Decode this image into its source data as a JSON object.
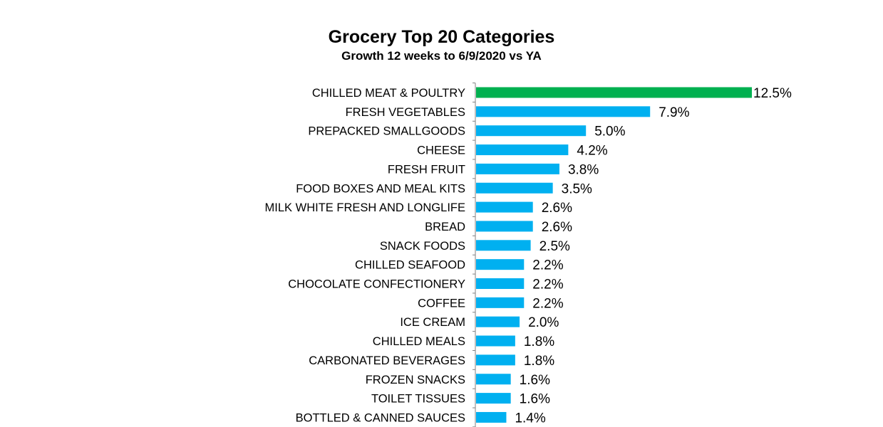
{
  "chart_data": {
    "type": "bar",
    "orientation": "horizontal",
    "title": "Grocery Top 20 Categories",
    "subtitle": "Growth 12 weeks to 6/9/2020 vs YA",
    "categories": [
      "CHILLED MEAT & POULTRY",
      "FRESH VEGETABLES",
      "PREPACKED SMALLGOODS",
      "CHEESE",
      "FRESH FRUIT",
      "FOOD BOXES AND MEAL KITS",
      "MILK WHITE FRESH AND LONGLIFE",
      "BREAD",
      "SNACK FOODS",
      "CHILLED SEAFOOD",
      "CHOCOLATE CONFECTIONERY",
      "COFFEE",
      "ICE CREAM",
      "CHILLED MEALS",
      "CARBONATED BEVERAGES",
      "FROZEN SNACKS",
      "TOILET TISSUES",
      "BOTTLED & CANNED SAUCES"
    ],
    "values": [
      12.5,
      7.9,
      5.0,
      4.2,
      3.8,
      3.5,
      2.6,
      2.6,
      2.5,
      2.2,
      2.2,
      2.2,
      2.0,
      1.8,
      1.8,
      1.6,
      1.6,
      1.4
    ],
    "value_labels": [
      "12.5%",
      "7.9%",
      "5.0%",
      "4.2%",
      "3.8%",
      "3.5%",
      "2.6%",
      "2.6%",
      "2.5%",
      "2.2%",
      "2.2%",
      "2.2%",
      "2.0%",
      "1.8%",
      "1.8%",
      "1.6%",
      "1.6%",
      "1.4%"
    ],
    "xlim": [
      0,
      12.5
    ],
    "grid": false,
    "legend": "none",
    "colors": {
      "highlight": "#00b050",
      "default": "#00b0f0"
    },
    "highlight_index": 0
  }
}
